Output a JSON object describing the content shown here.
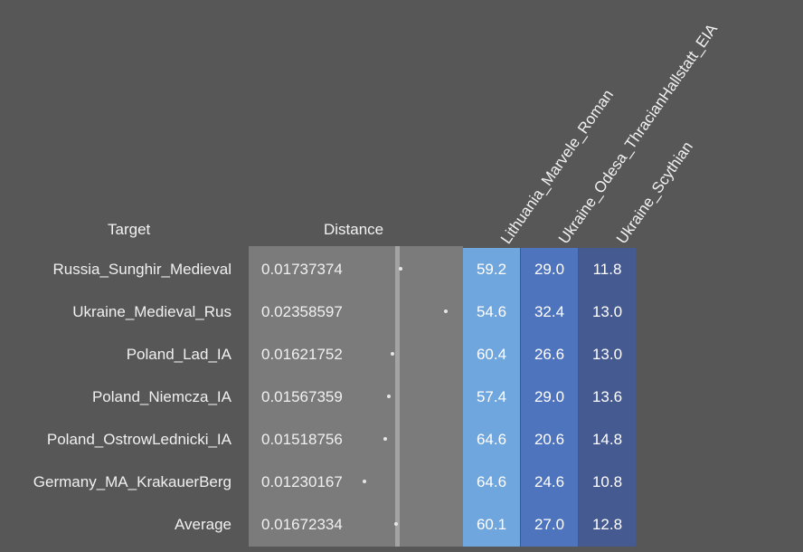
{
  "headers": {
    "target": "Target",
    "distance": "Distance",
    "columns": [
      "Lithuania_Marvele_Roman",
      "Ukraine_Odesa_ThracianHallstatt_EIA",
      "Ukraine_Scythian"
    ]
  },
  "rows": [
    {
      "target": "Russia_Sunghir_Medieval",
      "distance": "0.01737374",
      "distance_value": 0.01737374,
      "values": [
        "59.2",
        "29.0",
        "11.8"
      ]
    },
    {
      "target": "Ukraine_Medieval_Rus",
      "distance": "0.02358597",
      "distance_value": 0.02358597,
      "values": [
        "54.6",
        "32.4",
        "13.0"
      ]
    },
    {
      "target": "Poland_Lad_IA",
      "distance": "0.01621752",
      "distance_value": 0.01621752,
      "values": [
        "60.4",
        "26.6",
        "13.0"
      ]
    },
    {
      "target": "Poland_Niemcza_IA",
      "distance": "0.01567359",
      "distance_value": 0.01567359,
      "values": [
        "57.4",
        "29.0",
        "13.6"
      ]
    },
    {
      "target": "Poland_OstrowLednicki_IA",
      "distance": "0.01518756",
      "distance_value": 0.01518756,
      "values": [
        "64.6",
        "20.6",
        "14.8"
      ]
    },
    {
      "target": "Germany_MA_KrakauerBerg",
      "distance": "0.01230167",
      "distance_value": 0.01230167,
      "values": [
        "64.6",
        "24.6",
        "10.8"
      ]
    },
    {
      "target": "Average",
      "distance": "0.01672334",
      "distance_value": 0.01672334,
      "values": [
        "60.1",
        "27.0",
        "12.8"
      ]
    }
  ],
  "colors": {
    "background": "#575757",
    "distance_panel": "#7b7b7b",
    "distance_marker": "#a3a3a3",
    "column_1": "#6fa6dd",
    "column_2": "#4e74be",
    "column_3": "#465a92"
  }
}
